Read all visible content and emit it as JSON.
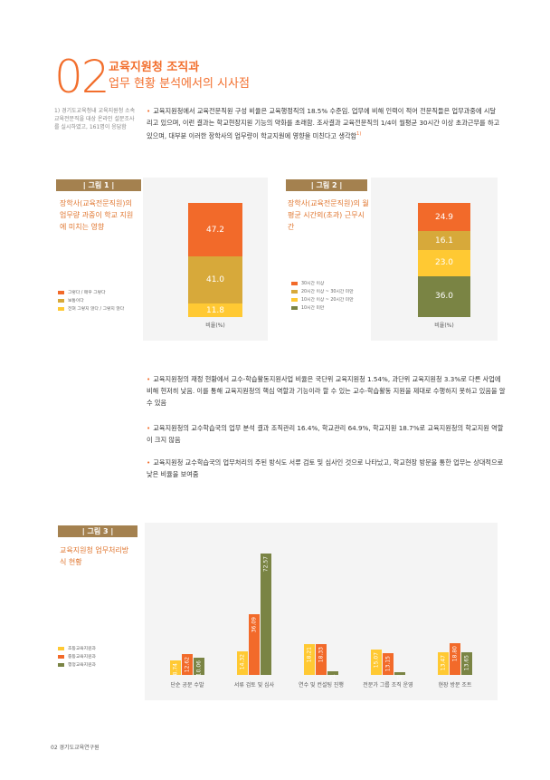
{
  "header": {
    "number": "02",
    "title1": "교육지원청 조직과",
    "title2": "업무 현황 분석에서의 시사점"
  },
  "footnote": "1) 경기도교육청내 교육지원청 소속 교육전문직을 대상 온라인 설문조사를 실시하였고, 161명이 응답함",
  "intro": {
    "text": "교육지원청에서 교육전문직원 구성 비율은 교육행정직의 18.5% 수준임. 업무에 비해 인력이 적어 전문직들은 업무과중에 시달리고 있으며, 이런 결과는 학교현장지원 기능의 약화를 초래함. 조사결과 교육전문직의 1/4이 월평균 30시간 이상 초과근무를 하고 있으며, 대부분 이러한 장학사의 업무량이 학교지원에 영향을 미친다고 생각함",
    "sup": "1)"
  },
  "bullets": [
    "교육지원청의 재정 현황에서 교수-학습활동지원사업 비율은 국단위 교육지원청 1.54%, 과단위 교육지원청 3.3%로 다른 사업에 비해 현저히 낮음. 이를 통해 교육지원청의 핵심 역할과 기능이라 할 수 있는 교수-학습활동 지원을 제대로 수행하지 못하고 있음을 알 수 있음",
    "교육지원청의 교수학습국의 업무 분석 결과 조직관리 16.4%, 학교관리 64.9%, 학교지원 18.7%로 교육지원청의 학교지원 역할이 크지 않음",
    "교육지원청 교수학습국의 업무처리의 주된 방식도 서류 검토 및 심사인 것으로 나타났고, 학교현장 방문을 통한 업무는 상대적으로 낮은 비율을 보여줌"
  ],
  "fig1": {
    "tag": "| 그림 1 |",
    "title": "장학사(교육전문직원)의 업무량 과중이 학교 지원에 미치는 영향",
    "xlabel": "비율(%)",
    "legend": [
      "그렇다 / 매우 그렇다",
      "보통이다",
      "전혀 그렇지 않다 / 그렇지 않다"
    ],
    "colors": [
      "#f26a2a",
      "#d7a93a",
      "#ffc933"
    ],
    "chart_data": {
      "type": "bar",
      "stacked": true,
      "categories": [
        "비율(%)"
      ],
      "series": [
        {
          "name": "그렇다 / 매우 그렇다",
          "values": [
            47.2
          ]
        },
        {
          "name": "보통이다",
          "values": [
            41.0
          ]
        },
        {
          "name": "전혀 그렇지 않다 / 그렇지 않다",
          "values": [
            11.8
          ]
        }
      ]
    }
  },
  "fig2": {
    "tag": "| 그림 2 |",
    "title": "장학사(교육전문직원)의 월 평균 시간외(초과) 근무시간",
    "xlabel": "비율(%)",
    "legend": [
      "30시간 이상",
      "20시간 이상 ~ 30시간 미만",
      "10시간 이상 ~ 20시간 미만",
      "10시간 미만"
    ],
    "colors": [
      "#f26a2a",
      "#d7a93a",
      "#ffc933",
      "#7a8444"
    ],
    "chart_data": {
      "type": "bar",
      "stacked": true,
      "categories": [
        "비율(%)"
      ],
      "series": [
        {
          "name": "30시간 이상",
          "values": [
            24.9
          ]
        },
        {
          "name": "20시간 이상 ~ 30시간 미만",
          "values": [
            16.1
          ]
        },
        {
          "name": "10시간 이상 ~ 20시간 미만",
          "values": [
            23.0
          ]
        },
        {
          "name": "10시간 미만",
          "values": [
            36.0
          ]
        }
      ]
    }
  },
  "fig3": {
    "tag": "| 그림 3 |",
    "title": "교육지원청 업무처리방식 현황",
    "legend": [
      "초등교육지원과",
      "중등교육지원과",
      "행정교육지원과"
    ],
    "colors": [
      "#ffc933",
      "#f26a2a",
      "#7a8444"
    ],
    "chart_data": {
      "type": "bar",
      "categories": [
        "단순 공문 수발",
        "서류 검토 및 심사",
        "연수 및 컨설팅 진행",
        "전문가 그룹 조직 운영",
        "현장 방문 조트"
      ],
      "series": [
        {
          "name": "초등교육지원과",
          "values": [
            8.74,
            14.32,
            18.21,
            15.07,
            13.47
          ]
        },
        {
          "name": "중등교육지원과",
          "values": [
            12.62,
            36.09,
            18.33,
            13.15,
            18.8
          ]
        },
        {
          "name": "행정교육지원과",
          "values": [
            10.06,
            72.57,
            2.21,
            1.52,
            13.65
          ]
        }
      ]
    }
  },
  "footer": "02 경기도교육연구원"
}
